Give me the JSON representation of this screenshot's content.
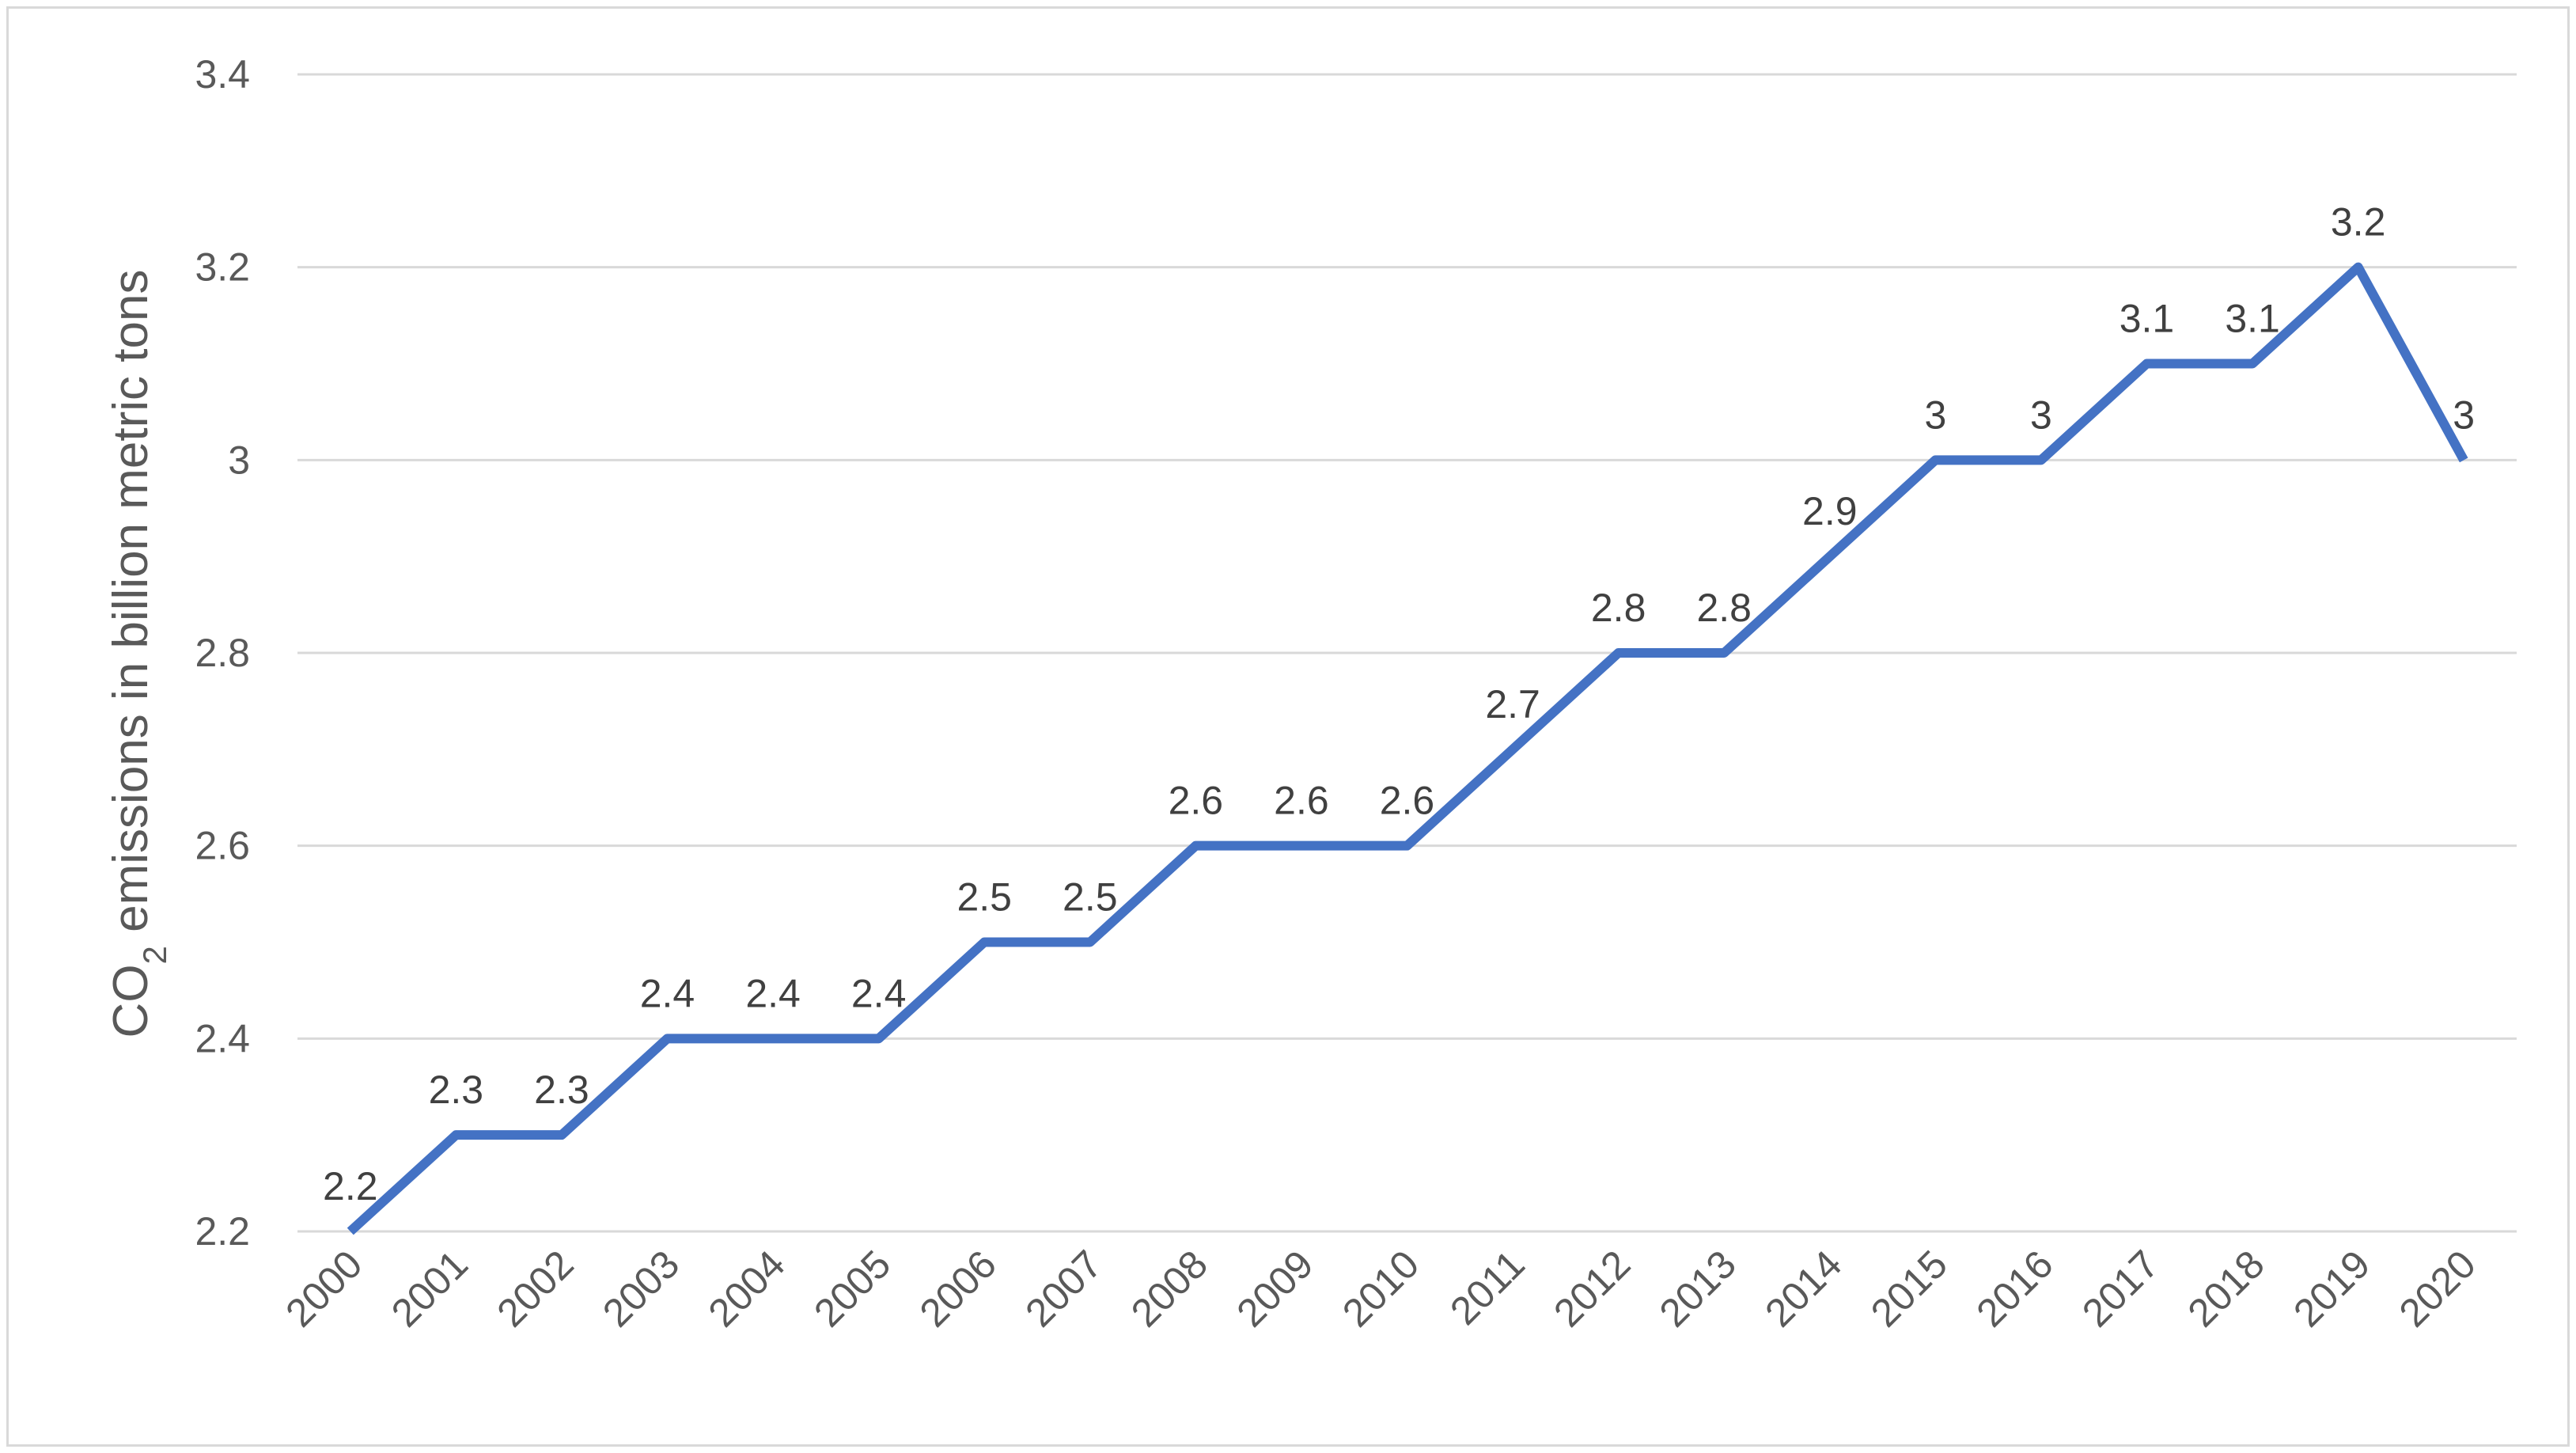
{
  "chart_data": {
    "type": "line",
    "title": "",
    "xlabel": "",
    "ylabel": {
      "prefix": "CO",
      "subscript": "2",
      "suffix": " emissions in billion metric tons"
    },
    "categories": [
      "2000",
      "2001",
      "2002",
      "2003",
      "2004",
      "2005",
      "2006",
      "2007",
      "2008",
      "2009",
      "2010",
      "2011",
      "2012",
      "2013",
      "2014",
      "2015",
      "2016",
      "2017",
      "2018",
      "2019",
      "2020"
    ],
    "series": [
      {
        "values": [
          2.2,
          2.3,
          2.3,
          2.4,
          2.4,
          2.4,
          2.5,
          2.5,
          2.6,
          2.6,
          2.6,
          2.7,
          2.8,
          2.8,
          2.9,
          3.0,
          3.0,
          3.1,
          3.1,
          3.2,
          3.0
        ],
        "labels": [
          "2.2",
          "2.3",
          "2.3",
          "2.4",
          "2.4",
          "2.4",
          "2.5",
          "2.5",
          "2.6",
          "2.6",
          "2.6",
          "2.7",
          "2.8",
          "2.8",
          "2.9",
          "3",
          "3",
          "3.1",
          "3.1",
          "3.2",
          "3"
        ],
        "color": "#4472c4"
      }
    ],
    "yticks": [
      2.2,
      2.4,
      2.6,
      2.8,
      3.0,
      3.2,
      3.4
    ],
    "ytick_labels": [
      "2.2",
      "2.4",
      "2.6",
      "2.8",
      "3",
      "3.2",
      "3.4"
    ],
    "ylim": [
      2.2,
      3.4
    ],
    "grid": true,
    "legend": "none"
  }
}
